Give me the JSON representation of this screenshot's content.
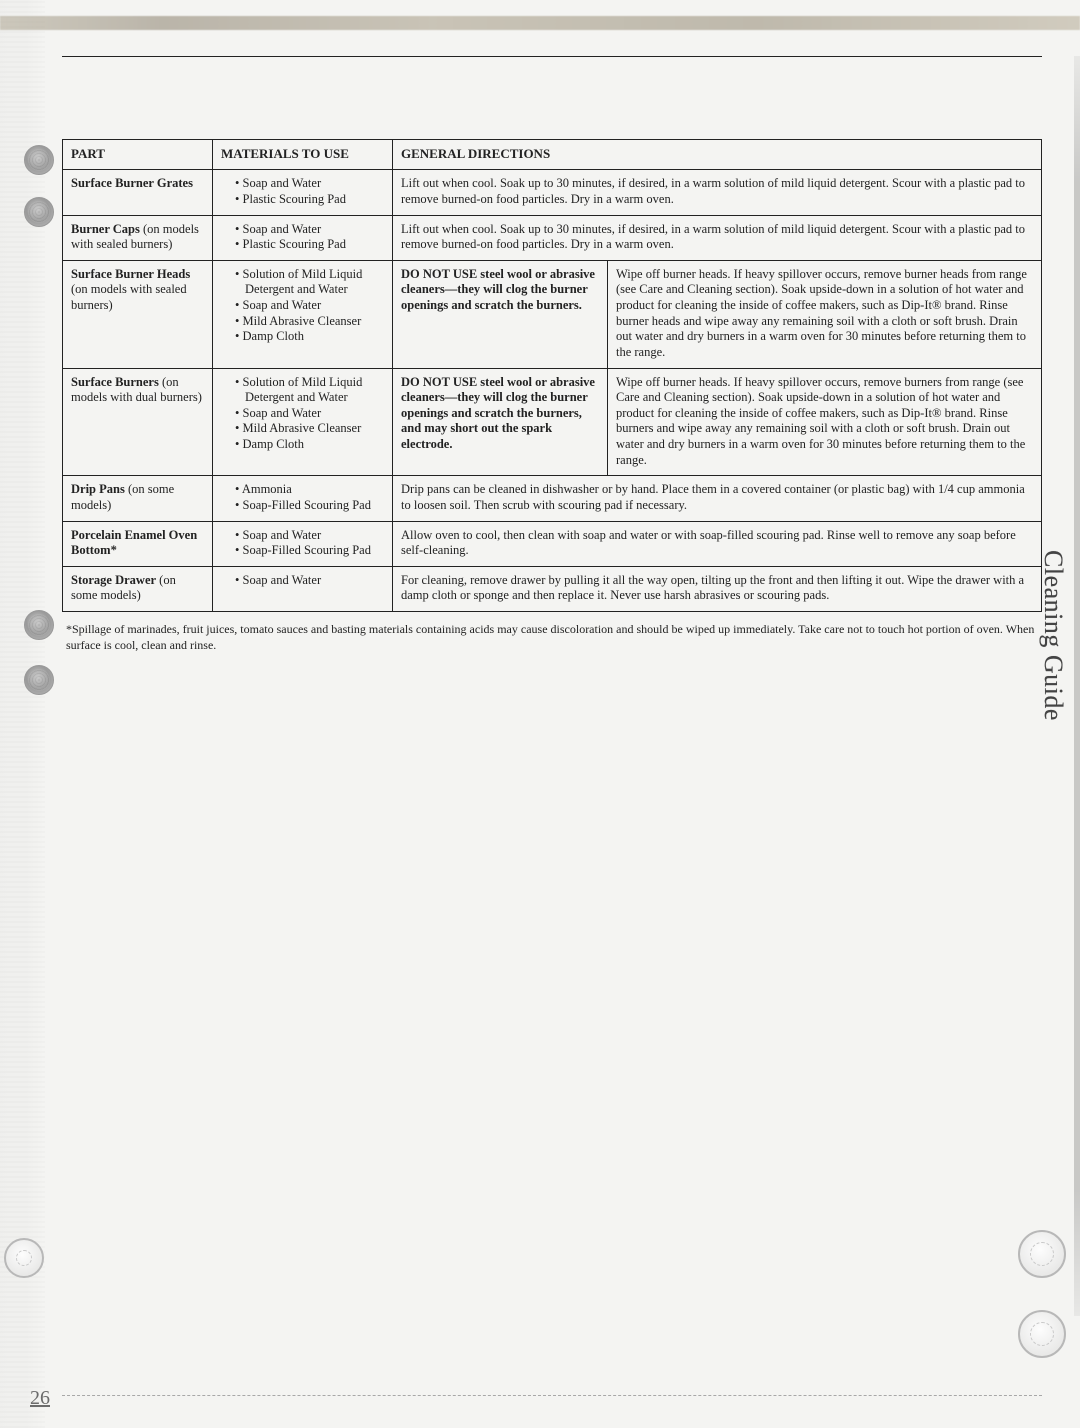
{
  "page_number": "26",
  "side_title": "Cleaning Guide",
  "footnote": "*Spillage of marinades, fruit juices, tomato sauces and basting materials containing acids may cause discoloration and should be wiped up immediately. Take care not to touch hot portion of oven. When surface is cool, clean and rinse.",
  "headers": {
    "part": "PART",
    "materials": "MATERIALS TO USE",
    "general": "GENERAL DIRECTIONS"
  },
  "rows": [
    {
      "part": "Surface Burner Grates",
      "materials": [
        "Soap and Water",
        "Plastic Scouring Pad"
      ],
      "warn": "",
      "directions": "Lift out when cool. Soak up to 30 minutes, if desired, in a warm solution of mild liquid detergent. Scour with a plastic pad to remove burned-on food particles. Dry in a warm oven.",
      "span": true
    },
    {
      "part_html": "<span class=\"bold\">Burner Caps</span> (on models with sealed burners)",
      "materials": [
        "Soap and Water",
        "Plastic Scouring Pad"
      ],
      "warn": "",
      "directions": "Lift out when cool. Soak up to 30 minutes, if desired, in a warm solution of mild liquid detergent. Scour with a plastic pad to remove burned-on food particles. Dry in a warm oven.",
      "span": true
    },
    {
      "part_html": "<span class=\"bold\">Surface Burner Heads</span> (on models with sealed burners)",
      "materials": [
        "Solution of Mild Liquid Detergent and Water",
        "Soap and Water",
        "Mild Abrasive Cleanser",
        "Damp Cloth"
      ],
      "warn": "DO NOT USE steel wool or abrasive cleaners—they will clog the burner openings and scratch the burners.",
      "directions": "Wipe off burner heads. If heavy spillover occurs, remove burner heads from range (see Care and Cleaning section). Soak upside-down in a solution of hot water and product for cleaning the inside of coffee makers, such as Dip-It® brand. Rinse burner heads and wipe away any remaining soil with a cloth or soft brush. Drain out water and dry burners in a warm oven for 30 minutes before returning them to the range."
    },
    {
      "part_html": "<span class=\"bold\">Surface Burners</span> (on models with dual burners)",
      "materials": [
        "Solution of Mild Liquid Detergent and Water",
        "Soap and Water",
        "Mild Abrasive Cleanser",
        "Damp Cloth"
      ],
      "warn": "DO NOT USE steel wool or abrasive cleaners—they will clog the burner openings and scratch the burners, and may short out the spark electrode.",
      "directions": "Wipe off burner heads. If heavy spillover occurs, remove burners from range (see Care and Cleaning section). Soak upside-down in a solution of hot water and product for cleaning the inside of coffee makers, such as Dip-It® brand. Rinse burners and wipe away any remaining soil with a cloth or soft brush. Drain out water and dry burners in a warm oven for 30 minutes before returning them to the range."
    },
    {
      "part_html": "<span class=\"bold\">Drip Pans</span> (on some models)",
      "materials": [
        "Ammonia",
        "Soap-Filled Scouring Pad"
      ],
      "warn": "",
      "directions": "Drip pans can be cleaned in dishwasher or by hand. Place them in a covered container (or plastic bag) with 1/4 cup ammonia to loosen soil. Then scrub with scouring pad if necessary.",
      "span": true
    },
    {
      "part_html": "<span class=\"bold\">Porcelain Enamel Oven Bottom*</span>",
      "materials": [
        "Soap and Water",
        "Soap-Filled Scouring Pad"
      ],
      "warn": "",
      "directions": "Allow oven to cool, then clean with soap and water or with soap-filled scouring pad. Rinse well to remove any soap before self-cleaning.",
      "span": true
    },
    {
      "part_html": "<span class=\"bold\">Storage Drawer</span> (on some models)",
      "materials": [
        "Soap and Water"
      ],
      "warn": "",
      "directions": "For cleaning, remove drawer by pulling it all the way open, tilting up the front and then lifting it out. Wipe the drawer with a damp cloth or sponge and then replace it. Never use harsh abrasives or scouring pads.",
      "span": true
    }
  ]
}
